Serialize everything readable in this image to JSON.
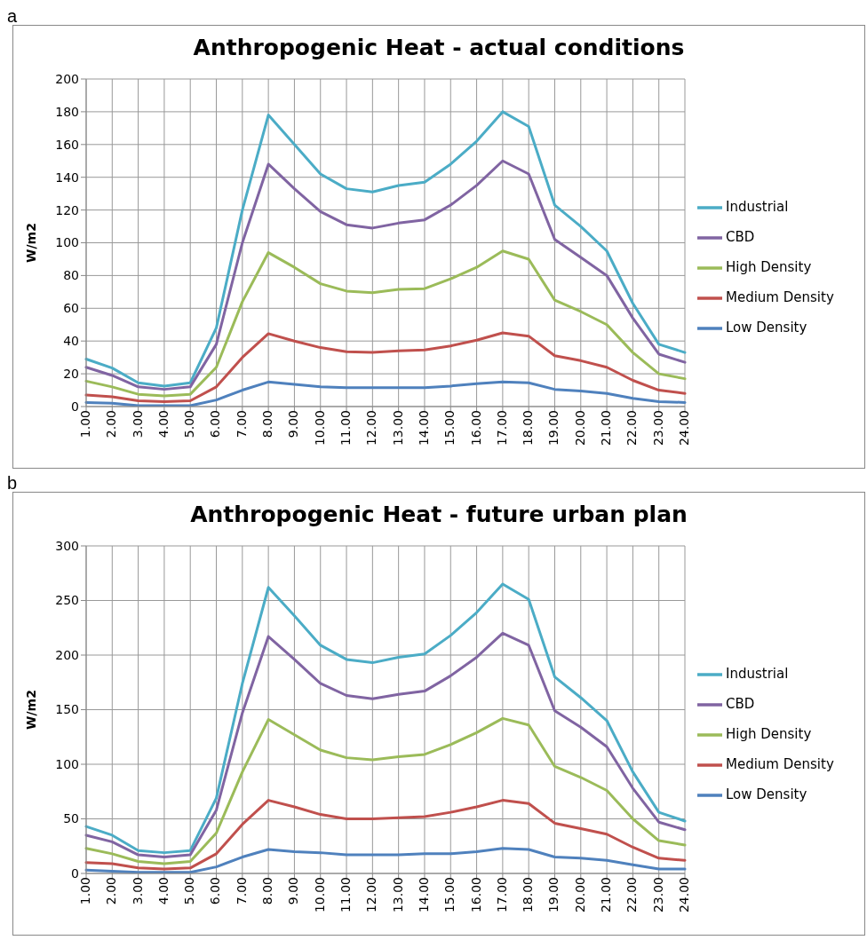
{
  "chart_data": [
    {
      "type": "line",
      "title": "Anthropogenic Heat - actual conditions",
      "ylabel": "W/m2",
      "annotations": [
        "a"
      ],
      "categories": [
        "1.00",
        "2.00",
        "3.00",
        "4.00",
        "5.00",
        "6.00",
        "7.00",
        "8.00",
        "9.00",
        "10.00",
        "11.00",
        "12.00",
        "13.00",
        "14.00",
        "15.00",
        "16.00",
        "17.00",
        "18.00",
        "19.00",
        "20.00",
        "21.00",
        "22.00",
        "23.00",
        "24.00"
      ],
      "series": [
        {
          "name": "Industrial",
          "color": "#4bacc6",
          "values": [
            29,
            23.5,
            14.5,
            12.5,
            14.5,
            48,
            120,
            178,
            160,
            142,
            133,
            131,
            135,
            137,
            148,
            162,
            180,
            171,
            123,
            110,
            95,
            63,
            38,
            33
          ]
        },
        {
          "name": "CBD",
          "color": "#8064a2",
          "values": [
            24,
            19,
            12,
            10.5,
            12,
            38,
            100,
            148,
            133,
            119,
            111,
            109,
            112,
            114,
            123,
            135,
            150,
            142,
            102,
            91,
            80,
            54,
            32,
            27
          ]
        },
        {
          "name": "High Density",
          "color": "#9bbb59",
          "values": [
            15.5,
            12,
            7.5,
            6.5,
            7.5,
            24,
            64,
            94,
            85,
            75,
            70.5,
            69.5,
            71.5,
            72,
            78,
            85,
            95,
            90,
            65,
            58,
            50,
            33,
            20,
            17
          ]
        },
        {
          "name": "Medium Density",
          "color": "#c0504d",
          "values": [
            7,
            6,
            3.5,
            3,
            3.5,
            12,
            30,
            44.5,
            40,
            36,
            33.5,
            33,
            34,
            34.5,
            37,
            40.5,
            45,
            43,
            31,
            28,
            24,
            16,
            10,
            8
          ]
        },
        {
          "name": "Low Density",
          "color": "#4f81bd",
          "values": [
            2.5,
            2,
            0.5,
            0.5,
            0.5,
            4,
            10,
            15,
            13.5,
            12,
            11.5,
            11.5,
            11.5,
            11.5,
            12.5,
            14,
            15,
            14.5,
            10.5,
            9.5,
            8,
            5,
            3,
            2.5
          ]
        }
      ],
      "ylim": [
        0,
        200
      ],
      "yticks": [
        0,
        20,
        40,
        60,
        80,
        100,
        120,
        140,
        160,
        180,
        200
      ],
      "grid": true,
      "legend": "right",
      "marker": "none"
    },
    {
      "type": "line",
      "title": "Anthropogenic Heat - future urban plan",
      "ylabel": "W/m2",
      "annotations": [
        "b"
      ],
      "categories": [
        "1.00",
        "2.00",
        "3.00",
        "4.00",
        "5.00",
        "6.00",
        "7.00",
        "8.00",
        "9.00",
        "10.00",
        "11.00",
        "12.00",
        "13.00",
        "14.00",
        "15.00",
        "16.00",
        "17.00",
        "18.00",
        "19.00",
        "20.00",
        "21.00",
        "22.00",
        "23.00",
        "24.00"
      ],
      "series": [
        {
          "name": "Industrial",
          "color": "#4bacc6",
          "values": [
            43,
            35,
            21,
            19,
            21,
            69,
            174,
            262,
            236,
            209,
            196,
            193,
            198,
            201,
            218,
            239,
            265,
            251,
            180,
            161,
            140,
            93,
            56,
            48
          ]
        },
        {
          "name": "CBD",
          "color": "#8064a2",
          "values": [
            35,
            29,
            17,
            15,
            17,
            58,
            147,
            217,
            196,
            174,
            163,
            160,
            164,
            167,
            181,
            198,
            220,
            209,
            149,
            134,
            116,
            78,
            47,
            40
          ]
        },
        {
          "name": "High Density",
          "color": "#9bbb59",
          "values": [
            23,
            18,
            11,
            9,
            11,
            37,
            93,
            141,
            127,
            113,
            106,
            104,
            107,
            109,
            118,
            129,
            142,
            136,
            98,
            88,
            76,
            50,
            30,
            26
          ]
        },
        {
          "name": "Medium Density",
          "color": "#c0504d",
          "values": [
            10,
            9,
            5,
            4,
            5,
            18,
            45,
            67,
            61,
            54,
            50,
            50,
            51,
            52,
            56,
            61,
            67,
            64,
            46,
            41,
            36,
            24,
            14,
            12
          ]
        },
        {
          "name": "Low Density",
          "color": "#4f81bd",
          "values": [
            3,
            2,
            1,
            1,
            1,
            6,
            15,
            22,
            20,
            19,
            17,
            17,
            17,
            18,
            18,
            20,
            23,
            22,
            15,
            14,
            12,
            8,
            4,
            4
          ]
        }
      ],
      "ylim": [
        0,
        300
      ],
      "yticks": [
        0,
        50,
        100,
        150,
        200,
        250,
        300
      ],
      "grid": true,
      "legend": "right",
      "marker": "none"
    }
  ]
}
